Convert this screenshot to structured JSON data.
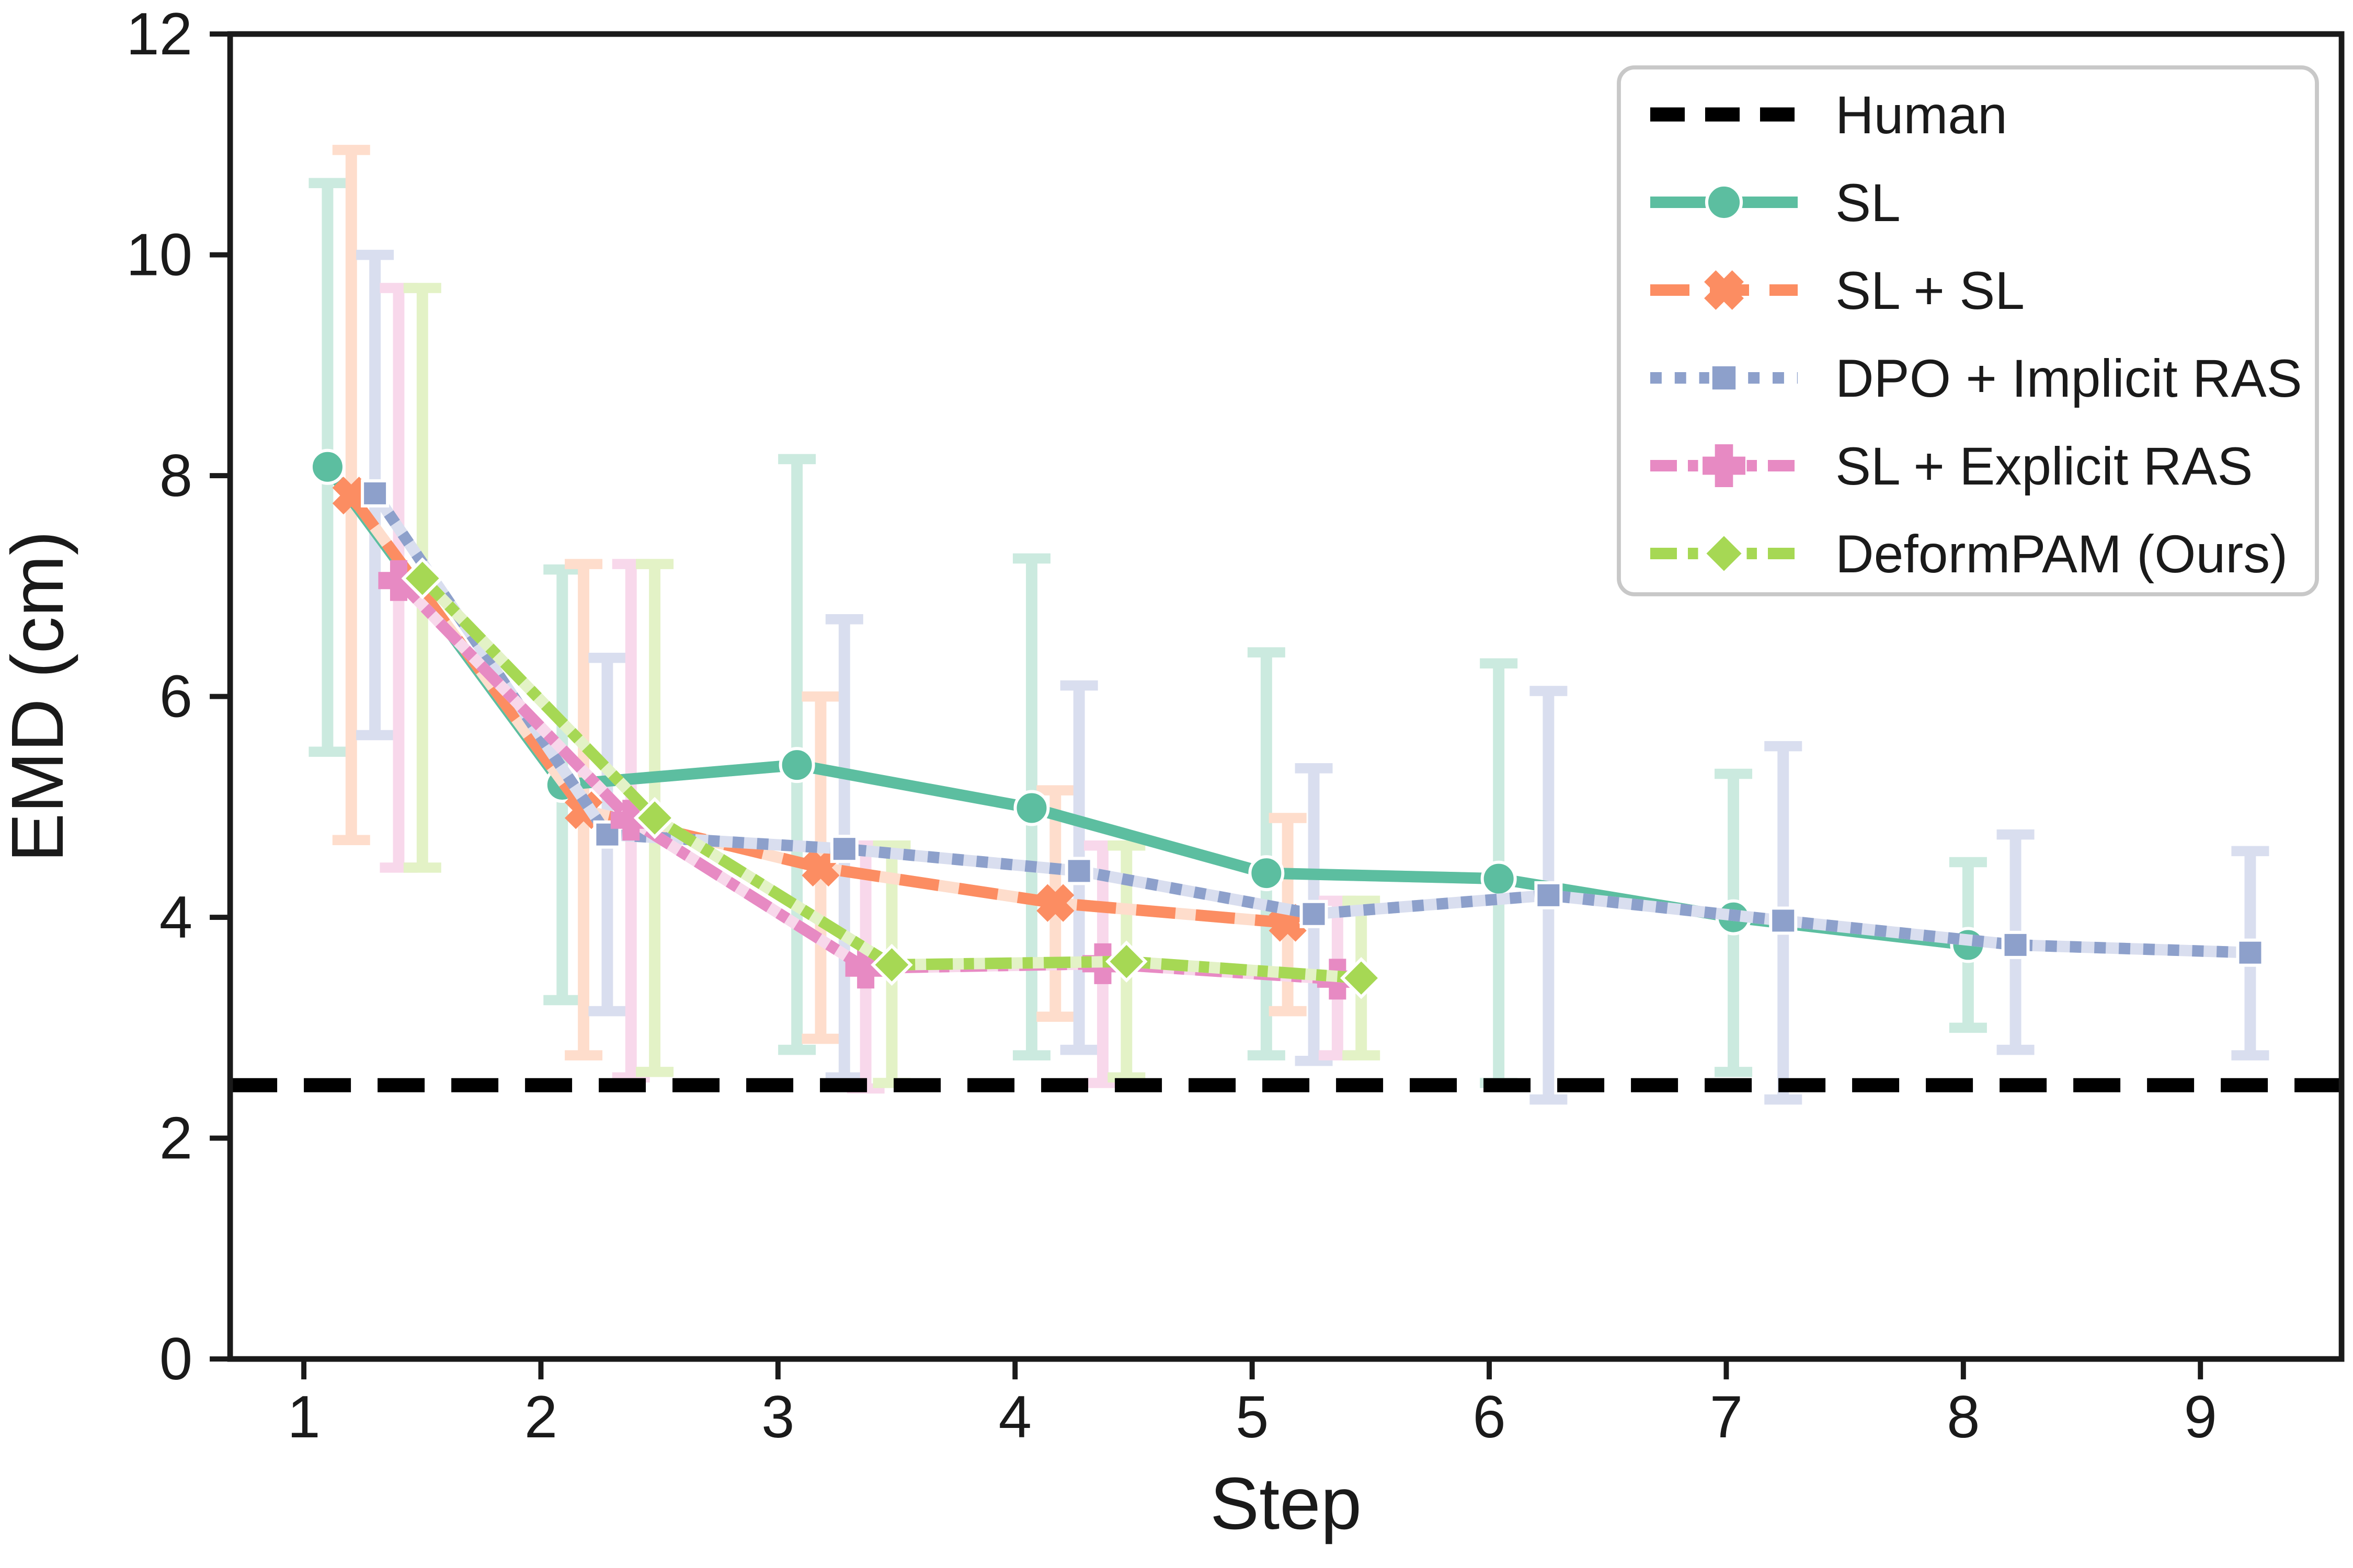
{
  "chart_data": {
    "type": "line",
    "title": "",
    "xlabel": "Step",
    "ylabel": "EMD (cm)",
    "xticks": [
      1,
      2,
      3,
      4,
      5,
      6,
      7,
      8,
      9
    ],
    "yticks": [
      0,
      2,
      4,
      6,
      8,
      10,
      12
    ],
    "xlim": [
      0.69,
      9.6
    ],
    "ylim": [
      0,
      12
    ],
    "grid": false,
    "legend_position": "upper right",
    "frame_color": "#1a1a1a",
    "background": "#ffffff",
    "human_baseline": {
      "label": "Human",
      "value": 2.48,
      "color": "#000000"
    },
    "series": [
      {
        "name": "SL",
        "marker": "circle",
        "linestyle": "solid",
        "color": "#5CBEA0",
        "light": "#CBEADF",
        "x": [
          1.1,
          2.09,
          3.08,
          4.07,
          5.06,
          6.04,
          7.03,
          8.02
        ],
        "y": [
          8.08,
          5.2,
          5.38,
          4.99,
          4.4,
          4.35,
          4.0,
          3.75
        ],
        "err_top": [
          10.65,
          7.15,
          8.15,
          7.25,
          6.4,
          6.3,
          5.3,
          4.5
        ],
        "err_bot": [
          5.5,
          3.25,
          2.8,
          2.75,
          2.75,
          2.5,
          2.6,
          3.0
        ]
      },
      {
        "name": "SL + SL",
        "marker": "x",
        "linestyle": "dashed",
        "color": "#FC8D62",
        "light": "#FEDDCC",
        "x": [
          1.2,
          2.18,
          3.18,
          4.17,
          5.15
        ],
        "y": [
          7.82,
          4.97,
          4.45,
          4.13,
          3.95
        ],
        "err_top": [
          10.95,
          7.2,
          6.0,
          5.15,
          4.9
        ],
        "err_bot": [
          4.7,
          2.75,
          2.9,
          3.1,
          3.15
        ]
      },
      {
        "name": "DPO + Implicit RAS",
        "marker": "square",
        "linestyle": "dotted",
        "color": "#8DA0CB",
        "light": "#D9DEEF",
        "x": [
          1.3,
          2.28,
          3.28,
          4.27,
          5.26,
          6.25,
          7.24,
          8.22,
          9.21
        ],
        "y": [
          7.84,
          4.75,
          4.62,
          4.42,
          4.03,
          4.2,
          3.97,
          3.75,
          3.68
        ],
        "err_top": [
          10.0,
          6.35,
          6.7,
          6.1,
          5.35,
          6.05,
          5.55,
          4.75,
          4.6
        ],
        "err_bot": [
          5.65,
          3.15,
          2.55,
          2.8,
          2.7,
          2.35,
          2.35,
          2.8,
          2.75
        ]
      },
      {
        "name": "SL + Explicit RAS",
        "marker": "plus",
        "linestyle": "dashdot",
        "color": "#E78AC3",
        "light": "#F8D8EB",
        "x": [
          1.4,
          2.38,
          3.37,
          4.37,
          5.36
        ],
        "y": [
          7.05,
          4.88,
          3.54,
          3.58,
          3.44
        ],
        "err_top": [
          9.7,
          7.2,
          4.65,
          4.65,
          4.15
        ],
        "err_bot": [
          4.45,
          2.55,
          2.45,
          2.5,
          2.75
        ]
      },
      {
        "name": "DeformPAM (Ours)",
        "marker": "diamond",
        "linestyle": "dashdot",
        "color": "#A6D854",
        "light": "#E3F2C6",
        "x": [
          1.5,
          2.48,
          3.48,
          4.47,
          5.46
        ],
        "y": [
          7.07,
          4.9,
          3.57,
          3.6,
          3.45
        ],
        "err_top": [
          9.7,
          7.2,
          4.65,
          4.65,
          4.15
        ],
        "err_bot": [
          4.45,
          2.6,
          2.5,
          2.55,
          2.75
        ]
      }
    ],
    "legend": {
      "labels": [
        "Human",
        "SL",
        "SL + SL",
        "DPO + Implicit RAS",
        "SL + Explicit RAS",
        "DeformPAM (Ours)"
      ],
      "border_color": "#C8C8C8",
      "background": "#FFFFFF"
    }
  }
}
